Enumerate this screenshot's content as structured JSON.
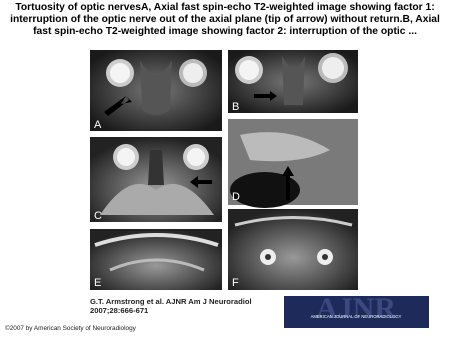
{
  "header": {
    "title": "Tortuosity of optic nervesA, Axial fast spin-echo T2-weighted image showing factor 1: interruption of the optic nerve out of the axial plane (tip of arrow) without return.B, Axial fast spin-echo T2-weighted image showing factor 2: interruption of the optic ..."
  },
  "panels": [
    {
      "label": "A"
    },
    {
      "label": "B"
    },
    {
      "label": "C"
    },
    {
      "label": "D"
    },
    {
      "label": "E"
    },
    {
      "label": "F"
    }
  ],
  "citation": "G.T. Armstrong et al. AJNR Am J Neuroradiol 2007;28:666-671",
  "logo": {
    "text": "AJNR",
    "subtitle": "AMERICAN JOURNAL OF NEURORADIOLOGY"
  },
  "copyright": "©2007 by American Society of Neuroradiology"
}
